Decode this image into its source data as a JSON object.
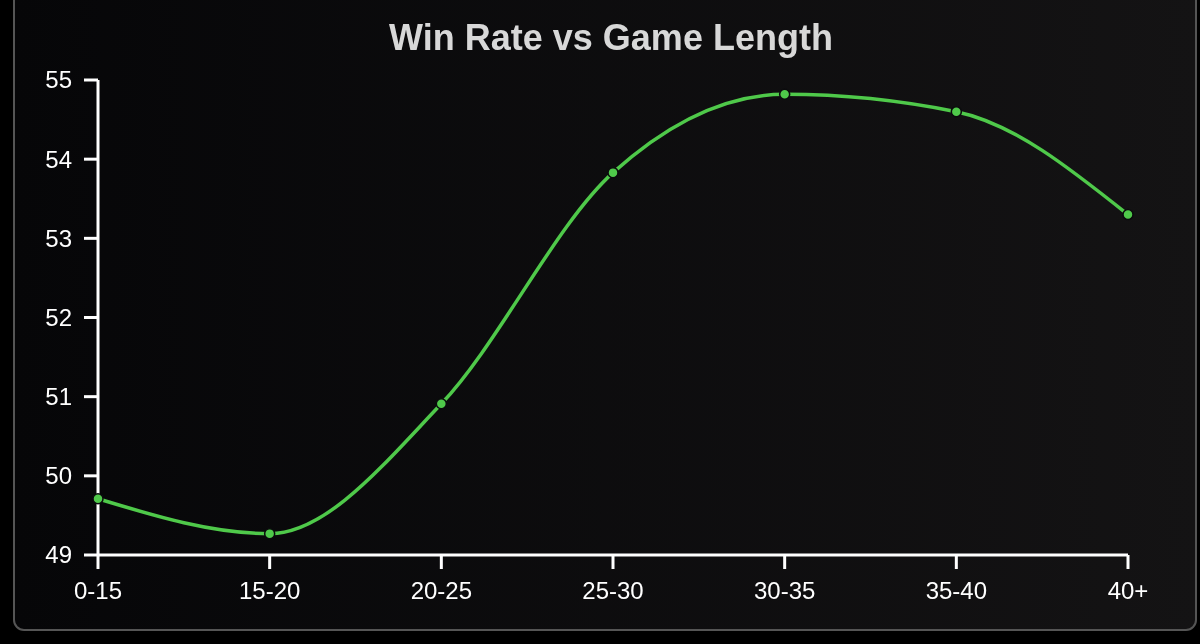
{
  "chart_data": {
    "type": "line",
    "title": "Win Rate vs Game Length",
    "categories": [
      "0-15",
      "15-20",
      "20-25",
      "25-30",
      "30-35",
      "35-40",
      "40+"
    ],
    "series": [
      {
        "color": "#4fc94a",
        "values": [
          49.71,
          49.27,
          50.91,
          53.83,
          54.82,
          54.6,
          53.3
        ]
      }
    ],
    "ylim": [
      49,
      55
    ],
    "yticks": [
      49,
      50,
      51,
      52,
      53,
      54,
      55
    ],
    "grid": false,
    "marker": "circle"
  }
}
